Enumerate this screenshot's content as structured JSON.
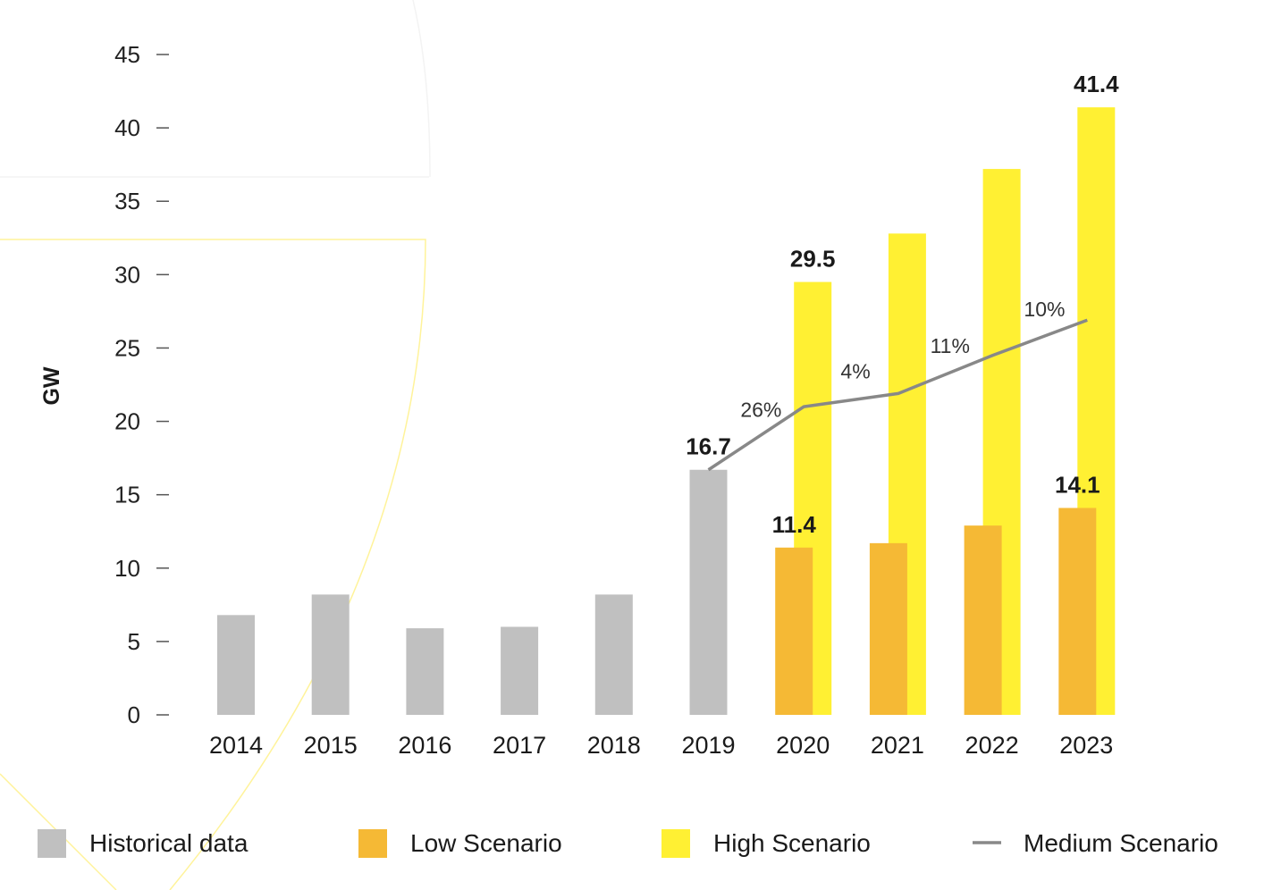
{
  "chart_data": {
    "type": "bar",
    "ylabel": "GW",
    "ylim": [
      0,
      45
    ],
    "yticks": [
      0,
      5,
      10,
      15,
      20,
      25,
      30,
      35,
      40,
      45
    ],
    "categories": [
      "2014",
      "2015",
      "2016",
      "2017",
      "2018",
      "2019",
      "2020",
      "2021",
      "2022",
      "2023"
    ],
    "series": [
      {
        "name": "Historical data",
        "type": "bar",
        "color": "#c0c0c0",
        "values": [
          6.8,
          8.2,
          5.9,
          6.0,
          8.2,
          16.7,
          null,
          null,
          null,
          null
        ]
      },
      {
        "name": "Low Scenario",
        "type": "bar",
        "color": "#f5b935",
        "values": [
          null,
          null,
          null,
          null,
          null,
          null,
          11.4,
          11.7,
          12.9,
          14.1
        ]
      },
      {
        "name": "High Scenario",
        "type": "bar",
        "color": "#fff033",
        "values": [
          null,
          null,
          null,
          null,
          null,
          null,
          29.5,
          32.8,
          37.2,
          41.4
        ]
      },
      {
        "name": "Medium Scenario",
        "type": "line",
        "color": "#888888",
        "values": [
          null,
          null,
          null,
          null,
          null,
          16.7,
          21.0,
          21.9,
          24.5,
          26.9
        ]
      }
    ],
    "data_labels": [
      {
        "category": "2019",
        "series": "Historical data",
        "text": "16.7"
      },
      {
        "category": "2020",
        "series": "Low Scenario",
        "text": "11.4"
      },
      {
        "category": "2020",
        "series": "High Scenario",
        "text": "29.5"
      },
      {
        "category": "2023",
        "series": "Low Scenario",
        "text": "14.1"
      },
      {
        "category": "2023",
        "series": "High Scenario",
        "text": "41.4"
      }
    ],
    "growth_labels": [
      {
        "category": "2020",
        "text": "26%"
      },
      {
        "category": "2021",
        "text": "4%"
      },
      {
        "category": "2022",
        "text": "11%"
      },
      {
        "category": "2023",
        "text": "10%"
      }
    ],
    "legend": {
      "placement": "bottom",
      "items": [
        {
          "label": "Historical data",
          "marker": "square",
          "color": "#c0c0c0"
        },
        {
          "label": "Low Scenario",
          "marker": "square",
          "color": "#f5b935"
        },
        {
          "label": "High Scenario",
          "marker": "square",
          "color": "#fff033"
        },
        {
          "label": "Medium Scenario",
          "marker": "line",
          "color": "#888888"
        }
      ]
    },
    "grid": false
  }
}
